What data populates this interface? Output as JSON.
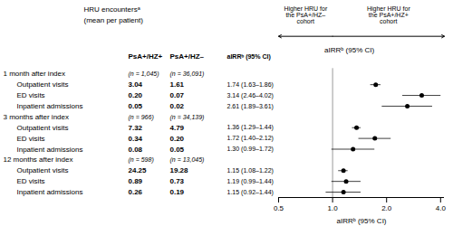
{
  "chart_data": {
    "type": "forest",
    "title": "HRU encountersᵃ",
    "subtitle": "(mean per patient)",
    "columns": [
      "PsA+/HZ+",
      "PsA+/HZ–",
      "aIRRᵇ (95% CI)"
    ],
    "groups": [
      {
        "label": "1 month after index",
        "n_labels": [
          "(n = 1,045)",
          "(n = 36,091)"
        ],
        "rows": [
          {
            "label": "Outpatient visits",
            "means": [
              "3.04",
              "1.61"
            ],
            "value": 1.74,
            "ci": [
              1.63,
              1.86
            ],
            "value_label": "1.74 (1.63–1.86)"
          },
          {
            "label": "ED visits",
            "means": [
              "0.20",
              "0.07"
            ],
            "value": 3.14,
            "ci": [
              2.46,
              4.02
            ],
            "value_label": "3.14 (2.46–4.02)"
          },
          {
            "label": "Inpatient admissions",
            "means": [
              "0.05",
              "0.02"
            ],
            "value": 2.61,
            "ci": [
              1.89,
              3.61
            ],
            "value_label": "2.61 (1.89–3.61)"
          }
        ]
      },
      {
        "label": "3 months after index",
        "n_labels": [
          "(n = 966)",
          "(n = 34,139)"
        ],
        "rows": [
          {
            "label": "Outpatient visits",
            "means": [
              "7.32",
              "4.79"
            ],
            "value": 1.36,
            "ci": [
              1.29,
              1.44
            ],
            "value_label": "1.36 (1.29–1.44)"
          },
          {
            "label": "ED visits",
            "means": [
              "0.34",
              "0.20"
            ],
            "value": 1.72,
            "ci": [
              1.4,
              2.12
            ],
            "value_label": "1.72 (1.40–2.12)"
          },
          {
            "label": "Inpatient admissions",
            "means": [
              "0.08",
              "0.05"
            ],
            "value": 1.3,
            "ci": [
              0.99,
              1.72
            ],
            "value_label": "1.30 (0.99–1.72)"
          }
        ]
      },
      {
        "label": "12 months after index",
        "n_labels": [
          "(n = 598)",
          "(n = 13,045)"
        ],
        "rows": [
          {
            "label": "Outpatient visits",
            "means": [
              "24.25",
              "19.28"
            ],
            "value": 1.15,
            "ci": [
              1.08,
              1.22
            ],
            "value_label": "1.15 (1.08–1.22)"
          },
          {
            "label": "ED visits",
            "means": [
              "0.89",
              "0.73"
            ],
            "value": 1.19,
            "ci": [
              0.99,
              1.44
            ],
            "value_label": "1.19 (0.99–1.44)"
          },
          {
            "label": "Inpatient admissions",
            "means": [
              "0.26",
              "0.19"
            ],
            "value": 1.15,
            "ci": [
              0.92,
              1.44
            ],
            "value_label": "1.15 (0.92–1.44)"
          }
        ]
      }
    ],
    "annotations": [
      "Higher HRU for\nthe PsA+/HZ–\ncohort",
      "Higher HRU for\nthe PsA+/HZ+\ncohort"
    ],
    "xlabel": "aIRRᵇ (95% CI)",
    "xlim": [
      0.5,
      4.2
    ],
    "xticks": [
      0.5,
      {
        "value": 1,
        "label": "1.0"
      },
      {
        "value": 2,
        "label": "2.0"
      },
      {
        "value": 4,
        "label": "4.0"
      }
    ],
    "log": "x",
    "reference_line": 1.0,
    "grid": false
  }
}
